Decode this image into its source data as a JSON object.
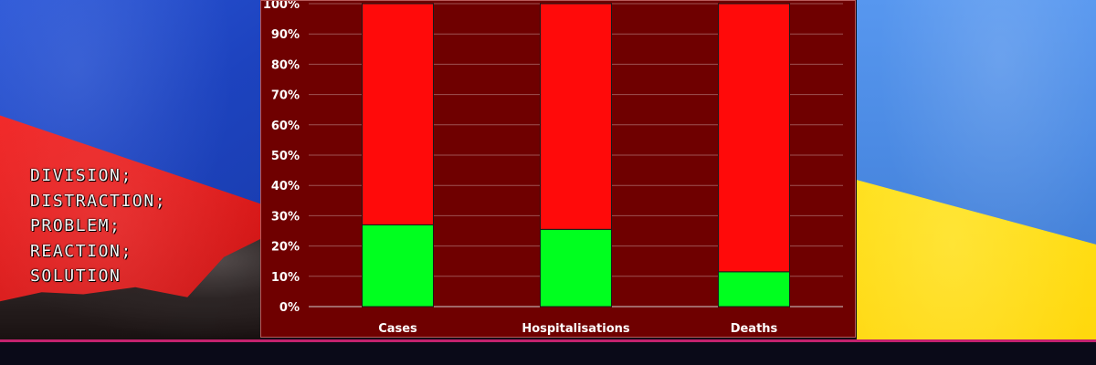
{
  "left_banner": {
    "lines": [
      "DIVISION;",
      "DISTRACTION;",
      "PROBLEM;",
      "REACTION;",
      "SOLUTION"
    ]
  },
  "colors": {
    "left_blue": "#1d43bf",
    "left_red": "#e21d1d",
    "right_blue": "#4b8ae3",
    "right_yellow": "#ffd80d",
    "chart_background": "#6f0000",
    "series_green": "#00ff1f",
    "series_red": "#ff0a0a",
    "bottom_accent": "#c3226e"
  },
  "chart_data": {
    "type": "bar",
    "stacked": true,
    "categories": [
      "Cases",
      "Hospitalisations",
      "Deaths"
    ],
    "series": [
      {
        "values": [
          27,
          25.5,
          11.5
        ],
        "color": "#00ff1f"
      },
      {
        "values": [
          73,
          74.5,
          88.5
        ],
        "color": "#ff0a0a"
      }
    ],
    "y_ticks": [
      "0%",
      "10%",
      "20%",
      "30%",
      "40%",
      "50%",
      "60%",
      "70%",
      "80%",
      "90%",
      "100%"
    ],
    "ylim": [
      0,
      100
    ],
    "grid": true,
    "legend": "none",
    "title": "",
    "xlabel": "",
    "ylabel": ""
  }
}
